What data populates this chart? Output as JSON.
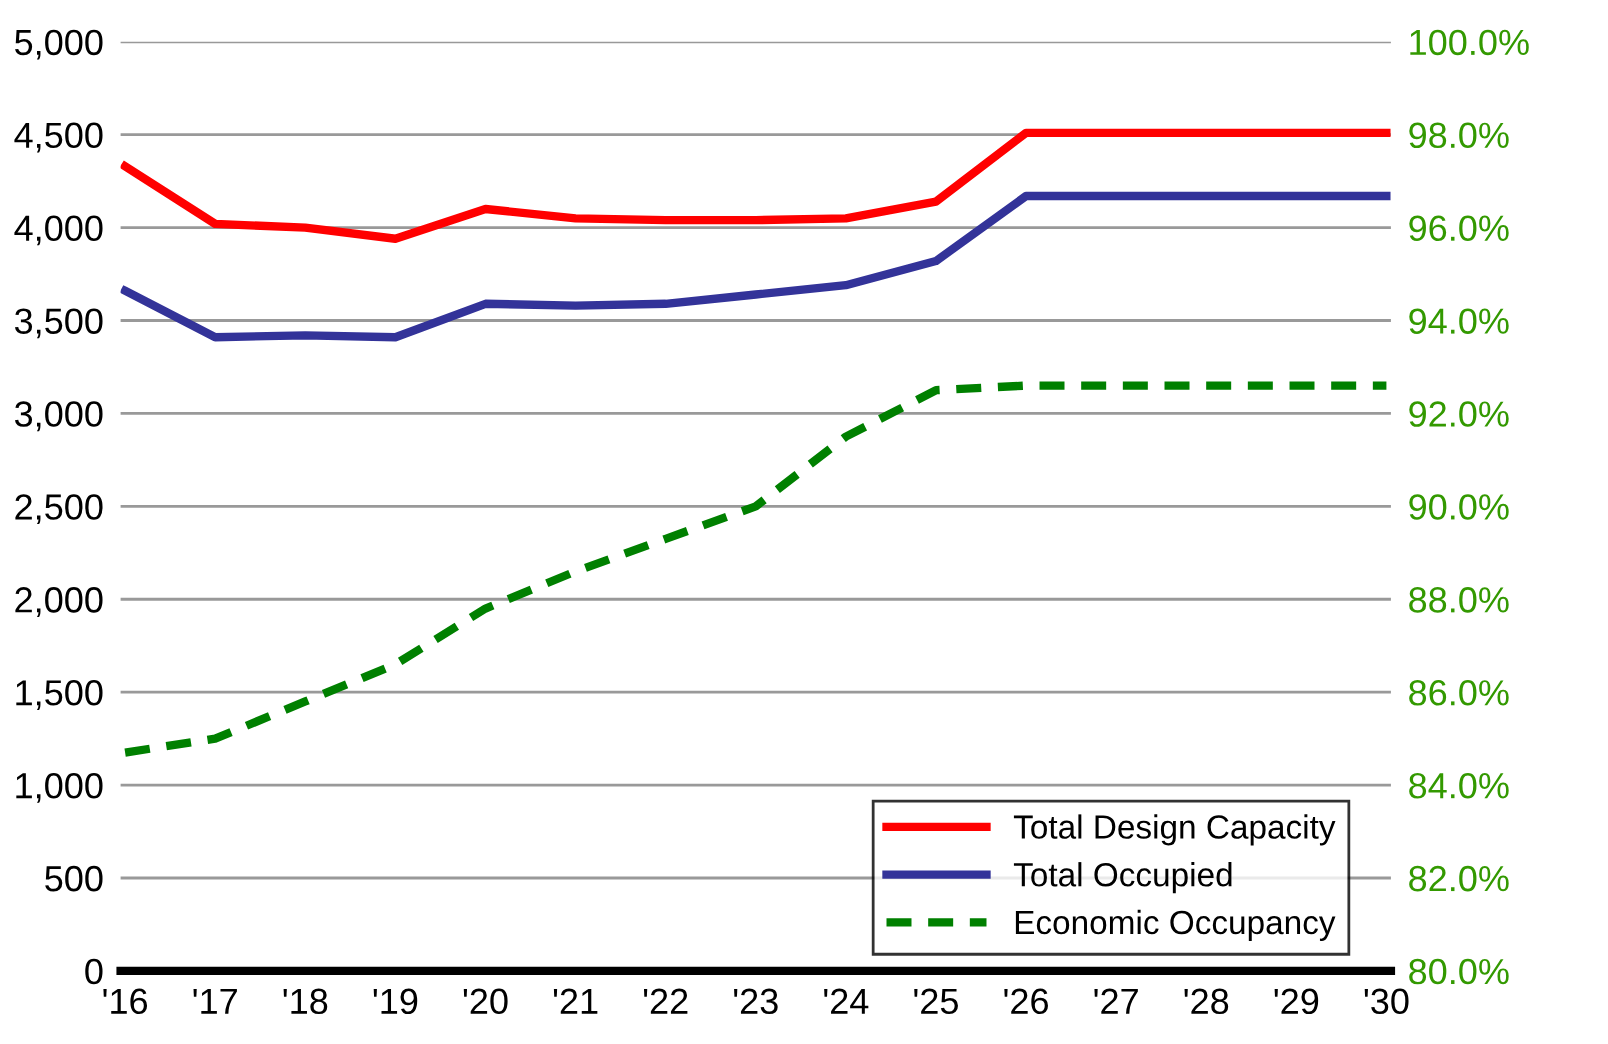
{
  "chart_data": {
    "type": "line",
    "categories": [
      "'16",
      "'17",
      "'18",
      "'19",
      "'20",
      "'21",
      "'22",
      "'23",
      "'24",
      "'25",
      "'26",
      "'27",
      "'28",
      "'29",
      "'30"
    ],
    "series": [
      {
        "name": "Total Design Capacity",
        "color": "#ff0000",
        "values": [
          4330,
          4020,
          4000,
          3940,
          4100,
          4050,
          4040,
          4040,
          4050,
          4140,
          4510,
          4510,
          4510,
          4510,
          4510
        ]
      },
      {
        "name": "Total Occupied",
        "color": "#333399",
        "values": [
          3660,
          3410,
          3420,
          3410,
          3590,
          3580,
          3590,
          3640,
          3690,
          3820,
          4170,
          4170,
          4170,
          4170,
          4170
        ]
      },
      {
        "name": "Economic Occupancy",
        "color": "#008000",
        "axis": "y2",
        "line_style": "dashed",
        "values": [
          84.7,
          85.0,
          85.8,
          86.6,
          87.8,
          88.6,
          89.3,
          90.0,
          91.5,
          92.5,
          92.6,
          92.6,
          92.6,
          92.6,
          92.6
        ]
      }
    ],
    "ylim": [
      0,
      5000
    ],
    "yticks": [
      0,
      {
        "value": 500,
        "label": "500"
      },
      {
        "value": 1000,
        "label": "1,000"
      },
      {
        "value": 1500,
        "label": "1,500"
      },
      {
        "value": 2000,
        "label": "2,000"
      },
      {
        "value": 2500,
        "label": "2,500"
      },
      {
        "value": 3000,
        "label": "3,000"
      },
      {
        "value": 3500,
        "label": "3,500"
      },
      {
        "value": 4000,
        "label": "4,000"
      },
      {
        "value": 4500,
        "label": "4,500"
      },
      {
        "value": 5000,
        "label": "5,000"
      }
    ],
    "y2lim": [
      80,
      100
    ],
    "y2ticks": [
      {
        "value": 80,
        "label": "80.0%"
      },
      {
        "value": 82,
        "label": "82.0%"
      },
      {
        "value": 84,
        "label": "84.0%"
      },
      {
        "value": 86,
        "label": "86.0%"
      },
      {
        "value": 88,
        "label": "88.0%"
      },
      {
        "value": 90,
        "label": "90.0%"
      },
      {
        "value": 92,
        "label": "92.0%"
      },
      {
        "value": 94,
        "label": "94.0%"
      },
      {
        "value": 96,
        "label": "96.0%"
      },
      {
        "value": 98,
        "label": "98.0%"
      },
      {
        "value": 100,
        "label": "100.0%"
      }
    ],
    "grid": "y",
    "legend": "bottom right",
    "marker": "none"
  }
}
